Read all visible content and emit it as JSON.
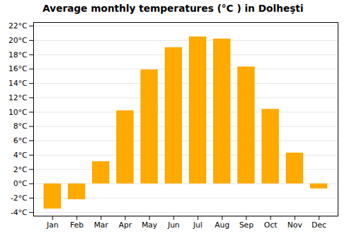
{
  "chart_data": {
    "type": "bar",
    "title": "Average monthly temperatures (°C ) in Dolheşti",
    "categories": [
      "Jan",
      "Feb",
      "Mar",
      "Apr",
      "May",
      "Jun",
      "Jul",
      "Aug",
      "Sep",
      "Oct",
      "Nov",
      "Dec"
    ],
    "values": [
      -3.5,
      -2.2,
      3.1,
      10.2,
      15.9,
      19.0,
      20.5,
      20.2,
      16.3,
      10.4,
      4.3,
      -0.7
    ],
    "color": "#FFAA00",
    "ylim": [
      -4.5,
      22.5
    ],
    "yticks": [
      {
        "value": -4,
        "label": "-4°C"
      },
      {
        "value": -2,
        "label": "-2°C"
      },
      {
        "value": 0,
        "label": "0°C"
      },
      {
        "value": 2,
        "label": "2°C"
      },
      {
        "value": 4,
        "label": "4°C"
      },
      {
        "value": 6,
        "label": "6°C"
      },
      {
        "value": 8,
        "label": "8°C"
      },
      {
        "value": 10,
        "label": "10°C"
      },
      {
        "value": 12,
        "label": "12°C"
      },
      {
        "value": 14,
        "label": "14°C"
      },
      {
        "value": 16,
        "label": "16°C"
      },
      {
        "value": 18,
        "label": "18°C"
      },
      {
        "value": 20,
        "label": "20°C"
      },
      {
        "value": 22,
        "label": "22°C"
      }
    ],
    "grid": true
  }
}
